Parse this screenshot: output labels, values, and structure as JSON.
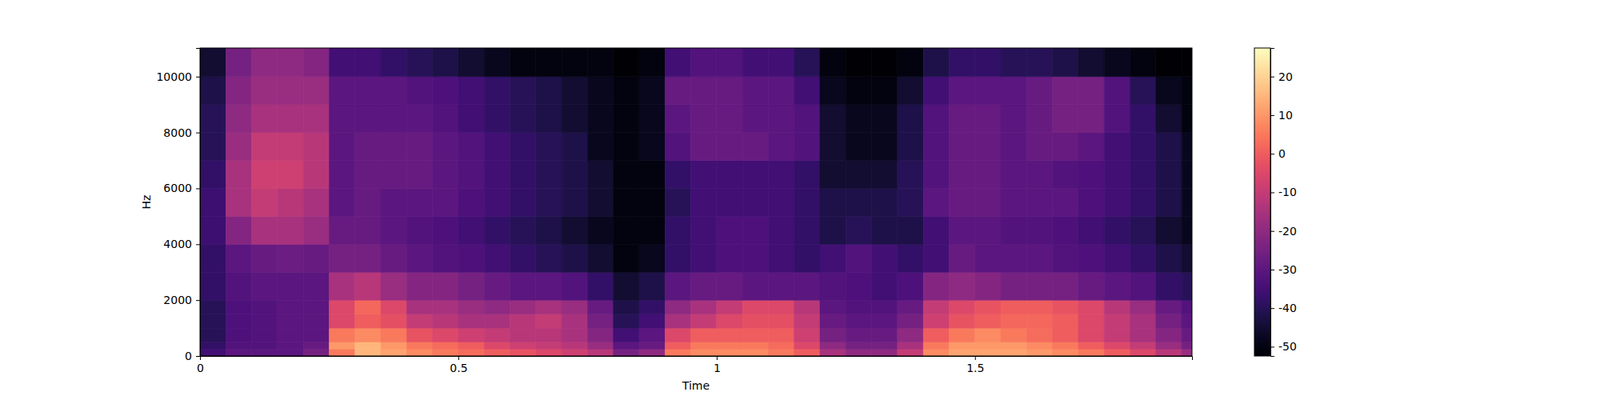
{
  "chart_data": {
    "type": "heatmap",
    "x_label": "Time",
    "y_label": "Hz",
    "xlim": [
      0,
      1.92
    ],
    "xticks": [
      0,
      0.5,
      1,
      1.5
    ],
    "ylim": [
      0,
      11025
    ],
    "yticks": [
      0,
      2000,
      4000,
      6000,
      8000,
      10000
    ],
    "color": "magma",
    "x_edges": [
      0,
      0.05,
      0.1,
      0.15,
      0.2,
      0.25,
      0.3,
      0.35,
      0.4,
      0.45,
      0.5,
      0.55,
      0.6,
      0.65,
      0.7,
      0.75,
      0.8,
      0.85,
      0.9,
      0.95,
      1.0,
      1.05,
      1.1,
      1.15,
      1.2,
      1.25,
      1.3,
      1.35,
      1.4,
      1.45,
      1.5,
      1.55,
      1.6,
      1.65,
      1.7,
      1.75,
      1.8,
      1.85,
      1.9,
      1.92
    ],
    "y_edges": [
      0,
      250,
      500,
      1000,
      1500,
      2000,
      3000,
      4000,
      5000,
      6000,
      7000,
      8000,
      9000,
      10000,
      11025
    ],
    "values": [
      [
        -35,
        -30,
        -30,
        -30,
        -25,
        5,
        15,
        12,
        8,
        5,
        3,
        0,
        -2,
        -5,
        -8,
        -12,
        -25,
        -20,
        5,
        8,
        8,
        8,
        5,
        0,
        -15,
        -20,
        -20,
        -10,
        8,
        12,
        12,
        12,
        10,
        8,
        5,
        0,
        -5,
        -12,
        -18
      ],
      [
        -38,
        -32,
        -32,
        -30,
        -28,
        10,
        15,
        10,
        5,
        3,
        0,
        -5,
        -8,
        -10,
        -12,
        -18,
        -30,
        -28,
        0,
        5,
        5,
        5,
        3,
        -5,
        -20,
        -25,
        -25,
        -15,
        5,
        10,
        10,
        10,
        8,
        5,
        0,
        -5,
        -10,
        -18,
        -25
      ],
      [
        -40,
        -33,
        -32,
        -30,
        -30,
        5,
        8,
        5,
        -2,
        -5,
        -8,
        -10,
        -12,
        -12,
        -15,
        -22,
        -35,
        -30,
        -5,
        0,
        0,
        0,
        0,
        -8,
        -25,
        -28,
        -28,
        -20,
        0,
        5,
        8,
        5,
        3,
        0,
        -5,
        -10,
        -15,
        -22,
        -28
      ],
      [
        -40,
        -33,
        -32,
        -30,
        -30,
        -5,
        0,
        -3,
        -10,
        -12,
        -15,
        -15,
        -12,
        -10,
        -15,
        -25,
        -40,
        -35,
        -15,
        -10,
        -5,
        -3,
        -3,
        -10,
        -28,
        -30,
        -30,
        -25,
        -8,
        -2,
        0,
        2,
        2,
        0,
        -5,
        -10,
        -15,
        -25,
        -30
      ],
      [
        -40,
        -33,
        -32,
        -30,
        -30,
        -5,
        2,
        -5,
        -15,
        -15,
        -18,
        -20,
        -18,
        -15,
        -18,
        -28,
        -42,
        -38,
        -20,
        -15,
        -10,
        -5,
        -5,
        -12,
        -30,
        -32,
        -32,
        -28,
        -10,
        -5,
        -2,
        0,
        0,
        -2,
        -5,
        -12,
        -18,
        -28,
        -32
      ],
      [
        -38,
        -32,
        -30,
        -30,
        -30,
        -15,
        -12,
        -18,
        -22,
        -22,
        -25,
        -28,
        -30,
        -30,
        -32,
        -38,
        -45,
        -42,
        -30,
        -28,
        -28,
        -30,
        -30,
        -30,
        -32,
        -33,
        -35,
        -33,
        -22,
        -20,
        -22,
        -25,
        -25,
        -25,
        -28,
        -30,
        -32,
        -38,
        -40
      ],
      [
        -38,
        -30,
        -28,
        -27,
        -28,
        -25,
        -25,
        -28,
        -30,
        -32,
        -33,
        -35,
        -38,
        -40,
        -42,
        -45,
        -50,
        -48,
        -38,
        -35,
        -33,
        -33,
        -35,
        -38,
        -35,
        -32,
        -35,
        -38,
        -35,
        -28,
        -30,
        -30,
        -30,
        -32,
        -33,
        -35,
        -38,
        -42,
        -45
      ],
      [
        -36,
        -22,
        -15,
        -15,
        -18,
        -28,
        -28,
        -30,
        -32,
        -33,
        -35,
        -38,
        -40,
        -42,
        -45,
        -48,
        -50,
        -50,
        -38,
        -35,
        -33,
        -33,
        -35,
        -38,
        -42,
        -40,
        -42,
        -42,
        -35,
        -30,
        -30,
        -32,
        -32,
        -33,
        -35,
        -38,
        -40,
        -45,
        -48
      ],
      [
        -36,
        -15,
        -10,
        -12,
        -15,
        -30,
        -28,
        -30,
        -30,
        -30,
        -33,
        -35,
        -38,
        -40,
        -42,
        -45,
        -50,
        -50,
        -40,
        -35,
        -35,
        -35,
        -35,
        -38,
        -42,
        -42,
        -42,
        -40,
        -30,
        -28,
        -28,
        -30,
        -30,
        -30,
        -33,
        -35,
        -38,
        -42,
        -48
      ],
      [
        -38,
        -15,
        -8,
        -8,
        -12,
        -30,
        -28,
        -28,
        -28,
        -30,
        -32,
        -35,
        -38,
        -40,
        -42,
        -45,
        -50,
        -50,
        -38,
        -35,
        -35,
        -35,
        -35,
        -38,
        -45,
        -45,
        -45,
        -40,
        -32,
        -28,
        -28,
        -30,
        -30,
        -32,
        -33,
        -35,
        -38,
        -42,
        -48
      ],
      [
        -40,
        -18,
        -10,
        -10,
        -12,
        -30,
        -28,
        -28,
        -28,
        -30,
        -32,
        -35,
        -38,
        -40,
        -42,
        -48,
        -50,
        -48,
        -32,
        -28,
        -28,
        -28,
        -30,
        -32,
        -45,
        -48,
        -48,
        -42,
        -32,
        -28,
        -28,
        -30,
        -28,
        -28,
        -30,
        -35,
        -38,
        -42,
        -48
      ],
      [
        -40,
        -20,
        -15,
        -15,
        -15,
        -30,
        -30,
        -30,
        -30,
        -32,
        -35,
        -38,
        -40,
        -42,
        -45,
        -48,
        -50,
        -48,
        -30,
        -28,
        -28,
        -30,
        -30,
        -32,
        -45,
        -48,
        -48,
        -42,
        -32,
        -28,
        -28,
        -30,
        -28,
        -25,
        -25,
        -32,
        -38,
        -45,
        -50
      ],
      [
        -42,
        -22,
        -18,
        -18,
        -18,
        -30,
        -30,
        -30,
        -32,
        -33,
        -35,
        -38,
        -40,
        -42,
        -45,
        -48,
        -50,
        -48,
        -28,
        -28,
        -28,
        -30,
        -30,
        -35,
        -48,
        -50,
        -50,
        -45,
        -35,
        -30,
        -30,
        -30,
        -28,
        -25,
        -25,
        -32,
        -40,
        -48,
        -50
      ],
      [
        -45,
        -25,
        -20,
        -20,
        -22,
        -35,
        -35,
        -38,
        -40,
        -42,
        -45,
        -48,
        -50,
        -50,
        -50,
        -50,
        -52,
        -50,
        -35,
        -32,
        -32,
        -35,
        -35,
        -40,
        -50,
        -52,
        -52,
        -50,
        -42,
        -38,
        -38,
        -40,
        -40,
        -42,
        -45,
        -48,
        -50,
        -52,
        -52
      ]
    ],
    "colorbar": {
      "lim": [
        -52.4,
        27.4
      ],
      "ticks": [
        -50,
        -40,
        -30,
        -20,
        -10,
        0,
        10,
        20
      ]
    }
  }
}
